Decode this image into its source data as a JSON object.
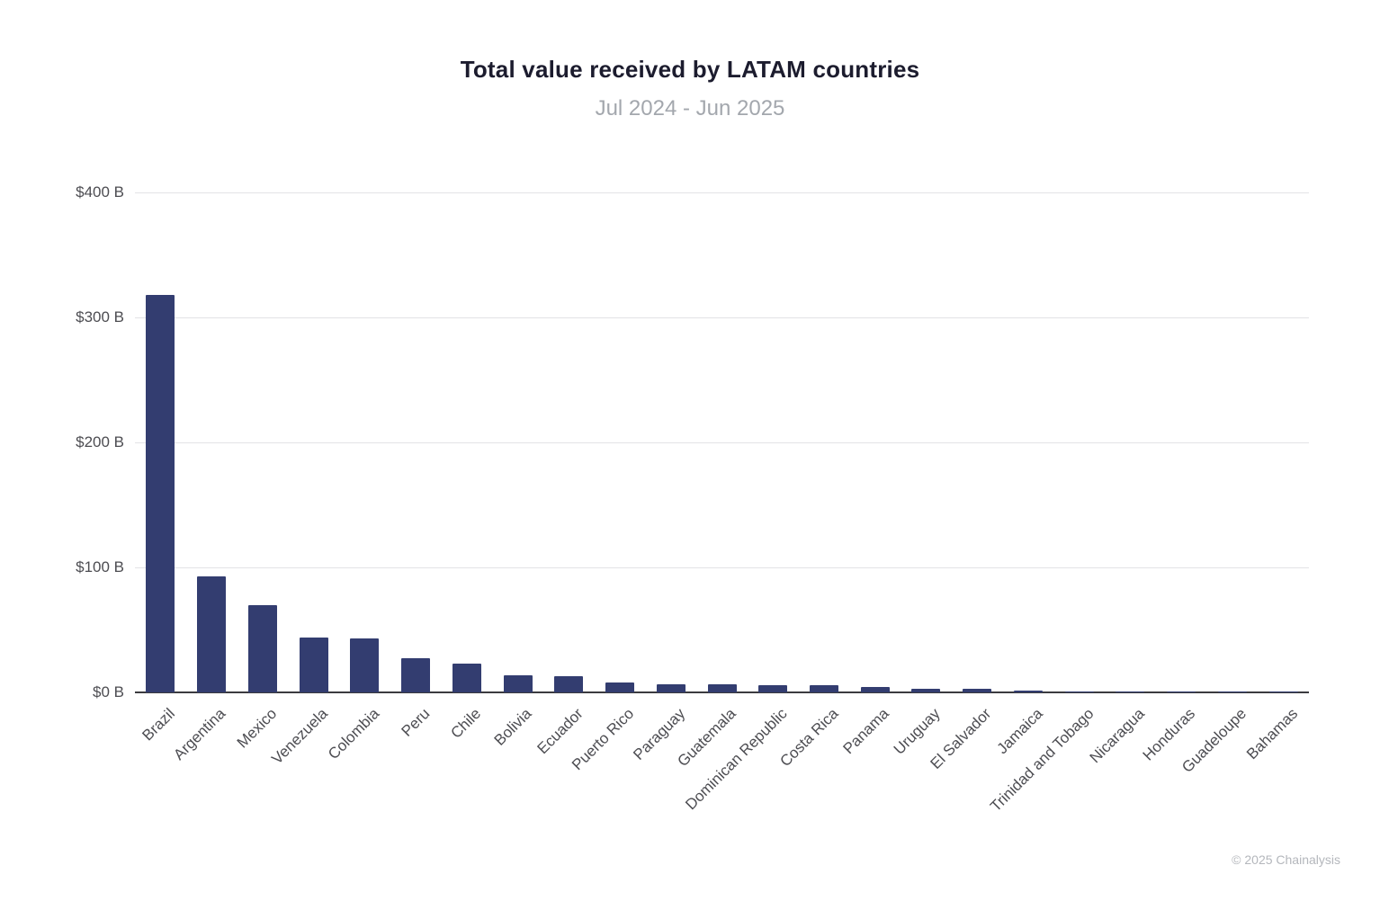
{
  "chart_data": {
    "type": "bar",
    "title": "Total value received by LATAM countries",
    "subtitle": "Jul 2024 - Jun 2025",
    "categories": [
      "Brazil",
      "Argentina",
      "Mexico",
      "Venezuela",
      "Colombia",
      "Peru",
      "Chile",
      "Bolivia",
      "Ecuador",
      "Puerto Rico",
      "Paraguay",
      "Guatemala",
      "Dominican Republic",
      "Costa Rica",
      "Panama",
      "Uruguay",
      "El Salvador",
      "Jamaica",
      "Trinidad and Tobago",
      "Nicaragua",
      "Honduras",
      "Guadeloupe",
      "Bahamas"
    ],
    "values": [
      318,
      93,
      70,
      44,
      43,
      27,
      23,
      14,
      13,
      8,
      6.5,
      6.5,
      6,
      5.5,
      4.5,
      3,
      3,
      1.5,
      0.5,
      0.4,
      0.3,
      0.2,
      0.15
    ],
    "ylabel": "",
    "xlabel": "",
    "ylim": [
      0,
      400
    ],
    "yticks": [
      0,
      100,
      200,
      300,
      400
    ],
    "ytick_labels": [
      "$0 B",
      "$100 B",
      "$200 B",
      "$300 B",
      "$400 B"
    ],
    "grid": true,
    "legend": false,
    "bar_color": "#333d70"
  },
  "footer": {
    "copyright": "© 2025 Chainalysis"
  }
}
